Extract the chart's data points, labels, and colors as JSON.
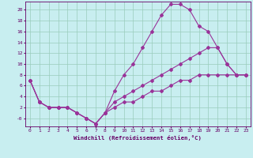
{
  "bg_color": "#c8eef0",
  "grid_color": "#99ccbb",
  "line_color": "#993399",
  "xlabel": "Windchill (Refroidissement éolien,°C)",
  "ytick_vals": [
    0,
    2,
    4,
    6,
    8,
    10,
    12,
    14,
    16,
    18,
    20
  ],
  "ylim": [
    -1.5,
    21.5
  ],
  "xlim": [
    -0.5,
    23.5
  ],
  "xtick_vals": [
    0,
    1,
    2,
    3,
    4,
    5,
    6,
    7,
    8,
    9,
    10,
    11,
    12,
    13,
    14,
    15,
    16,
    17,
    18,
    19,
    20,
    21,
    22,
    23
  ],
  "line1_x": [
    0,
    1,
    2,
    3,
    4,
    5,
    6,
    7,
    8,
    9,
    10,
    11,
    12,
    13,
    14,
    15,
    16,
    17,
    18,
    19,
    20,
    21,
    22,
    23
  ],
  "line1_y": [
    7,
    3,
    2,
    2,
    2,
    1,
    0,
    -1,
    1,
    5,
    8,
    10,
    13,
    16,
    19,
    21,
    21,
    20,
    17,
    16,
    13,
    10,
    8,
    8
  ],
  "line2_x": [
    0,
    1,
    2,
    3,
    4,
    5,
    6,
    7,
    8,
    9,
    10,
    11,
    12,
    13,
    14,
    15,
    16,
    17,
    18,
    19,
    20,
    21,
    22,
    23
  ],
  "line2_y": [
    7,
    3,
    2,
    2,
    2,
    1,
    0,
    -1,
    1,
    3,
    4,
    5,
    6,
    7,
    8,
    9,
    10,
    11,
    12,
    13,
    13,
    10,
    8,
    8
  ],
  "line3_x": [
    0,
    1,
    2,
    3,
    4,
    5,
    6,
    7,
    8,
    9,
    10,
    11,
    12,
    13,
    14,
    15,
    16,
    17,
    18,
    19,
    20,
    21,
    22,
    23
  ],
  "line3_y": [
    7,
    3,
    2,
    2,
    2,
    1,
    0,
    -1,
    1,
    2,
    3,
    3,
    4,
    5,
    5,
    6,
    7,
    7,
    8,
    8,
    8,
    8,
    8,
    8
  ],
  "marker": "D",
  "markersize": 2,
  "linewidth": 0.8,
  "font_color": "#660066",
  "tick_fontsize": 4.5,
  "xlabel_fontsize": 5.2
}
